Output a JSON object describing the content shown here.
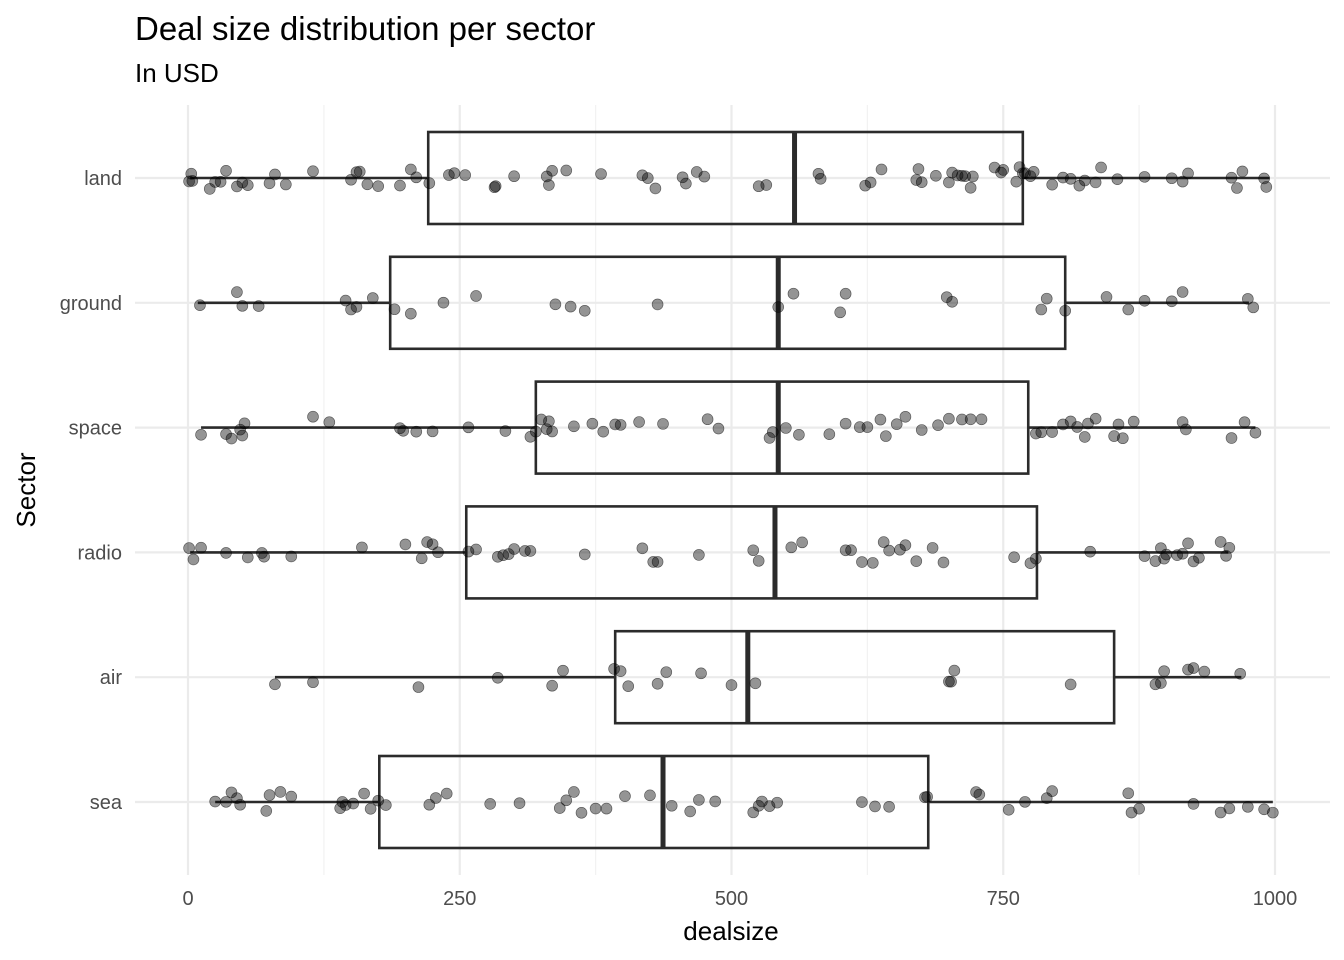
{
  "chart_data": {
    "type": "boxplot",
    "title": "Deal size distribution per sector",
    "subtitle": "In USD",
    "xlabel": "dealsize",
    "ylabel": "Sector",
    "xlim": [
      0,
      1000
    ],
    "x_ticks": [
      0,
      250,
      500,
      750,
      1000
    ],
    "x_tick_labels": [
      "0",
      "250",
      "500",
      "750",
      "1000"
    ],
    "grid": true,
    "point_color": "#000000",
    "box_color": "#2b2b2b",
    "categories": [
      "land",
      "ground",
      "space",
      "radio",
      "air",
      "sea"
    ],
    "boxes": [
      {
        "category": "land",
        "whisker_low": 2,
        "q1": 221,
        "median": 558,
        "q3": 768,
        "whisker_high": 995,
        "points": [
          1,
          3,
          4,
          20,
          25,
          30,
          35,
          45,
          50,
          55,
          75,
          80,
          90,
          115,
          150,
          155,
          158,
          165,
          175,
          195,
          205,
          210,
          222,
          240,
          245,
          255,
          282,
          283,
          300,
          330,
          332,
          335,
          348,
          380,
          418,
          423,
          430,
          455,
          458,
          468,
          475,
          525,
          532,
          580,
          582,
          623,
          628,
          638,
          670,
          672,
          675,
          688,
          700,
          703,
          708,
          712,
          715,
          720,
          722,
          742,
          748,
          750,
          762,
          765,
          768,
          770,
          775,
          778,
          795,
          805,
          812,
          820,
          825,
          835,
          840,
          855,
          880,
          905,
          915,
          920,
          960,
          965,
          970,
          990,
          992
        ]
      },
      {
        "category": "ground",
        "whisker_low": 9,
        "q1": 186,
        "median": 543,
        "q3": 807,
        "whisker_high": 976,
        "points": [
          11,
          45,
          50,
          65,
          145,
          150,
          155,
          170,
          190,
          205,
          235,
          265,
          338,
          352,
          365,
          432,
          543,
          557,
          600,
          605,
          698,
          703,
          785,
          790,
          807,
          845,
          865,
          880,
          905,
          915,
          975,
          980
        ]
      },
      {
        "category": "space",
        "whisker_low": 12,
        "q1": 320,
        "median": 543,
        "q3": 773,
        "whisker_high": 982,
        "points": [
          12,
          35,
          40,
          48,
          50,
          52,
          115,
          130,
          195,
          198,
          210,
          225,
          258,
          292,
          315,
          320,
          325,
          330,
          332,
          335,
          355,
          372,
          382,
          393,
          398,
          415,
          437,
          478,
          488,
          535,
          538,
          550,
          562,
          590,
          605,
          618,
          625,
          637,
          642,
          652,
          660,
          675,
          690,
          700,
          712,
          720,
          730,
          780,
          785,
          795,
          805,
          812,
          818,
          825,
          828,
          835,
          852,
          856,
          860,
          870,
          915,
          918,
          960,
          972,
          982
        ]
      },
      {
        "category": "radio",
        "whisker_low": 2,
        "q1": 256,
        "median": 540,
        "q3": 781,
        "whisker_high": 957,
        "points": [
          1,
          5,
          12,
          35,
          55,
          68,
          70,
          95,
          160,
          200,
          215,
          220,
          225,
          230,
          258,
          265,
          285,
          290,
          295,
          300,
          310,
          315,
          365,
          418,
          428,
          432,
          470,
          520,
          525,
          555,
          565,
          605,
          610,
          620,
          630,
          640,
          645,
          655,
          660,
          670,
          685,
          695,
          760,
          775,
          780,
          830,
          880,
          890,
          895,
          898,
          900,
          910,
          915,
          920,
          925,
          930,
          950,
          955,
          958
        ]
      },
      {
        "category": "air",
        "whisker_low": 80,
        "q1": 393,
        "median": 515,
        "q3": 852,
        "whisker_high": 969,
        "points": [
          80,
          115,
          212,
          285,
          335,
          345,
          392,
          398,
          405,
          432,
          440,
          472,
          500,
          522,
          700,
          702,
          705,
          812,
          890,
          895,
          898,
          920,
          925,
          935,
          968
        ]
      },
      {
        "category": "sea",
        "whisker_low": 25,
        "q1": 176,
        "median": 437,
        "q3": 681,
        "whisker_high": 998,
        "points": [
          25,
          35,
          40,
          45,
          48,
          72,
          75,
          85,
          95,
          140,
          142,
          145,
          152,
          162,
          168,
          175,
          182,
          222,
          228,
          238,
          278,
          305,
          342,
          348,
          355,
          362,
          375,
          385,
          402,
          425,
          445,
          462,
          470,
          485,
          520,
          525,
          528,
          535,
          542,
          620,
          632,
          645,
          678,
          680,
          725,
          728,
          755,
          770,
          790,
          795,
          865,
          868,
          875,
          925,
          950,
          958,
          975,
          990,
          998
        ]
      }
    ]
  }
}
